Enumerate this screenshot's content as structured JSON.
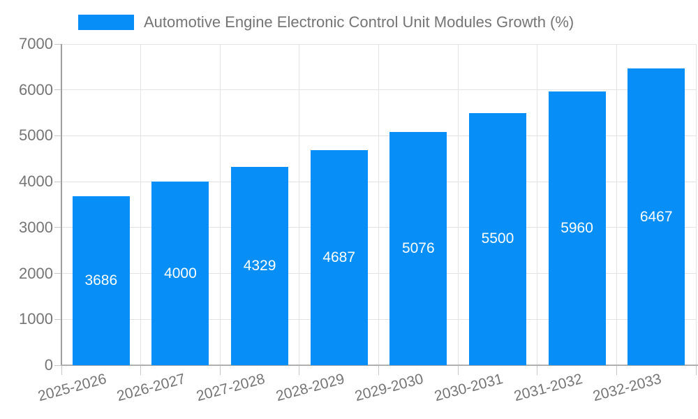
{
  "legend": {
    "label": "Automotive Engine Electronic Control Unit Modules Growth (%)"
  },
  "chart_data": {
    "type": "bar",
    "title": "Automotive Engine Electronic Control Unit Modules Growth (%)",
    "categories": [
      "2025-2026",
      "2026-2027",
      "2027-2028",
      "2028-2029",
      "2029-2030",
      "2030-2031",
      "2031-2032",
      "2032-2033"
    ],
    "values": [
      3686,
      4000,
      4329,
      4687,
      5076,
      5500,
      5960,
      6467
    ],
    "value_labels": [
      "3686",
      "4000",
      "4329",
      "4687",
      "5076",
      "5500",
      "5960",
      "6467"
    ],
    "xlabel": "",
    "ylabel": "",
    "ylim": [
      0,
      7000
    ],
    "ytick_step": 1000,
    "ytick_labels": [
      "0",
      "1000",
      "2000",
      "3000",
      "4000",
      "5000",
      "6000",
      "7000"
    ],
    "grid": "horizontal and vertical light gray gridlines",
    "legend_position": "top-left",
    "bar_color": "#088FF7",
    "value_label_color": "#ffffff",
    "axis_label_color": "#757575",
    "x_label_rotation_deg": -15
  }
}
